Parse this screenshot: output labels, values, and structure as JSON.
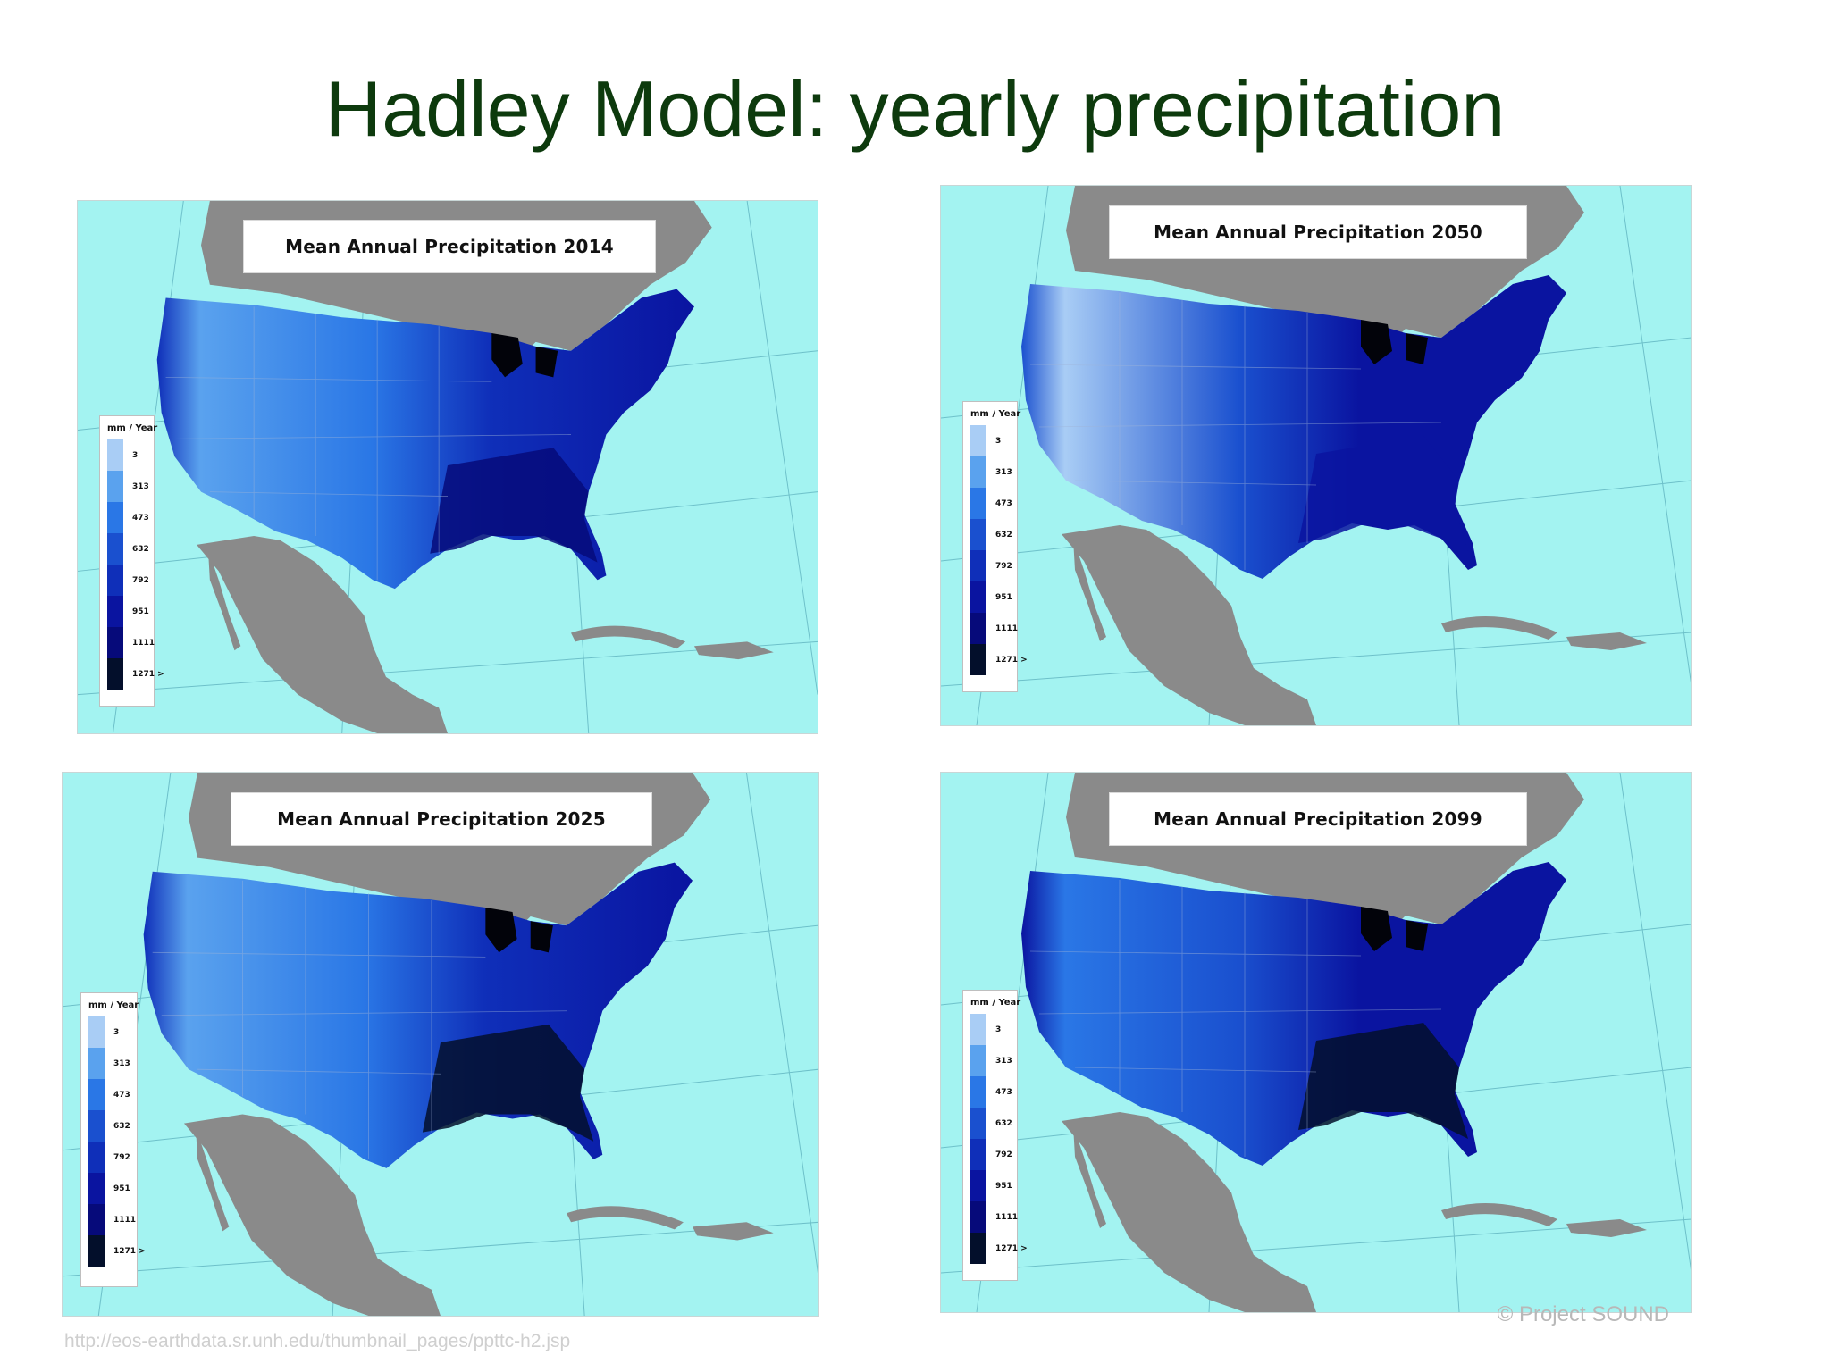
{
  "slide": {
    "title": "Hadley Model: yearly precipitation",
    "copyright": "© Project  SOUND",
    "source_url": "http://eos-earthdata.sr.unh.edu/thumbnail_pages/ppttc-h2.jsp"
  },
  "legend": {
    "title": "mm / Year",
    "bins": [
      {
        "label": "3",
        "color": "#a9cdf5"
      },
      {
        "label": "313",
        "color": "#5aa2ee"
      },
      {
        "label": "473",
        "color": "#2a77e6"
      },
      {
        "label": "632",
        "color": "#1a50cf"
      },
      {
        "label": "792",
        "color": "#0f2fb9"
      },
      {
        "label": "951",
        "color": "#0a14a0"
      },
      {
        "label": "1111",
        "color": "#060a7a"
      },
      {
        "label": "1271 >",
        "color": "#030f2b"
      }
    ]
  },
  "colors": {
    "ocean": "#a3f3f1",
    "land": "#8a8a8a",
    "title_text": "#0d3a0d"
  },
  "maps": [
    {
      "title": "Mean Annual Precipitation  2014",
      "year": 2014,
      "west_level": 1,
      "central_level": 3,
      "east_level": 5,
      "southeast_level": 6
    },
    {
      "title": "Mean Annual Precipitation  2050",
      "year": 2050,
      "west_level": 0,
      "central_level": 4,
      "east_level": 5,
      "southeast_level": 5
    },
    {
      "title": "Mean Annual Precipitation  2025",
      "year": 2025,
      "west_level": 1,
      "central_level": 3,
      "east_level": 5,
      "southeast_level": 7
    },
    {
      "title": "Mean Annual Precipitation  2099",
      "year": 2099,
      "west_level": 2,
      "central_level": 4,
      "east_level": 5,
      "southeast_level": 7
    }
  ]
}
